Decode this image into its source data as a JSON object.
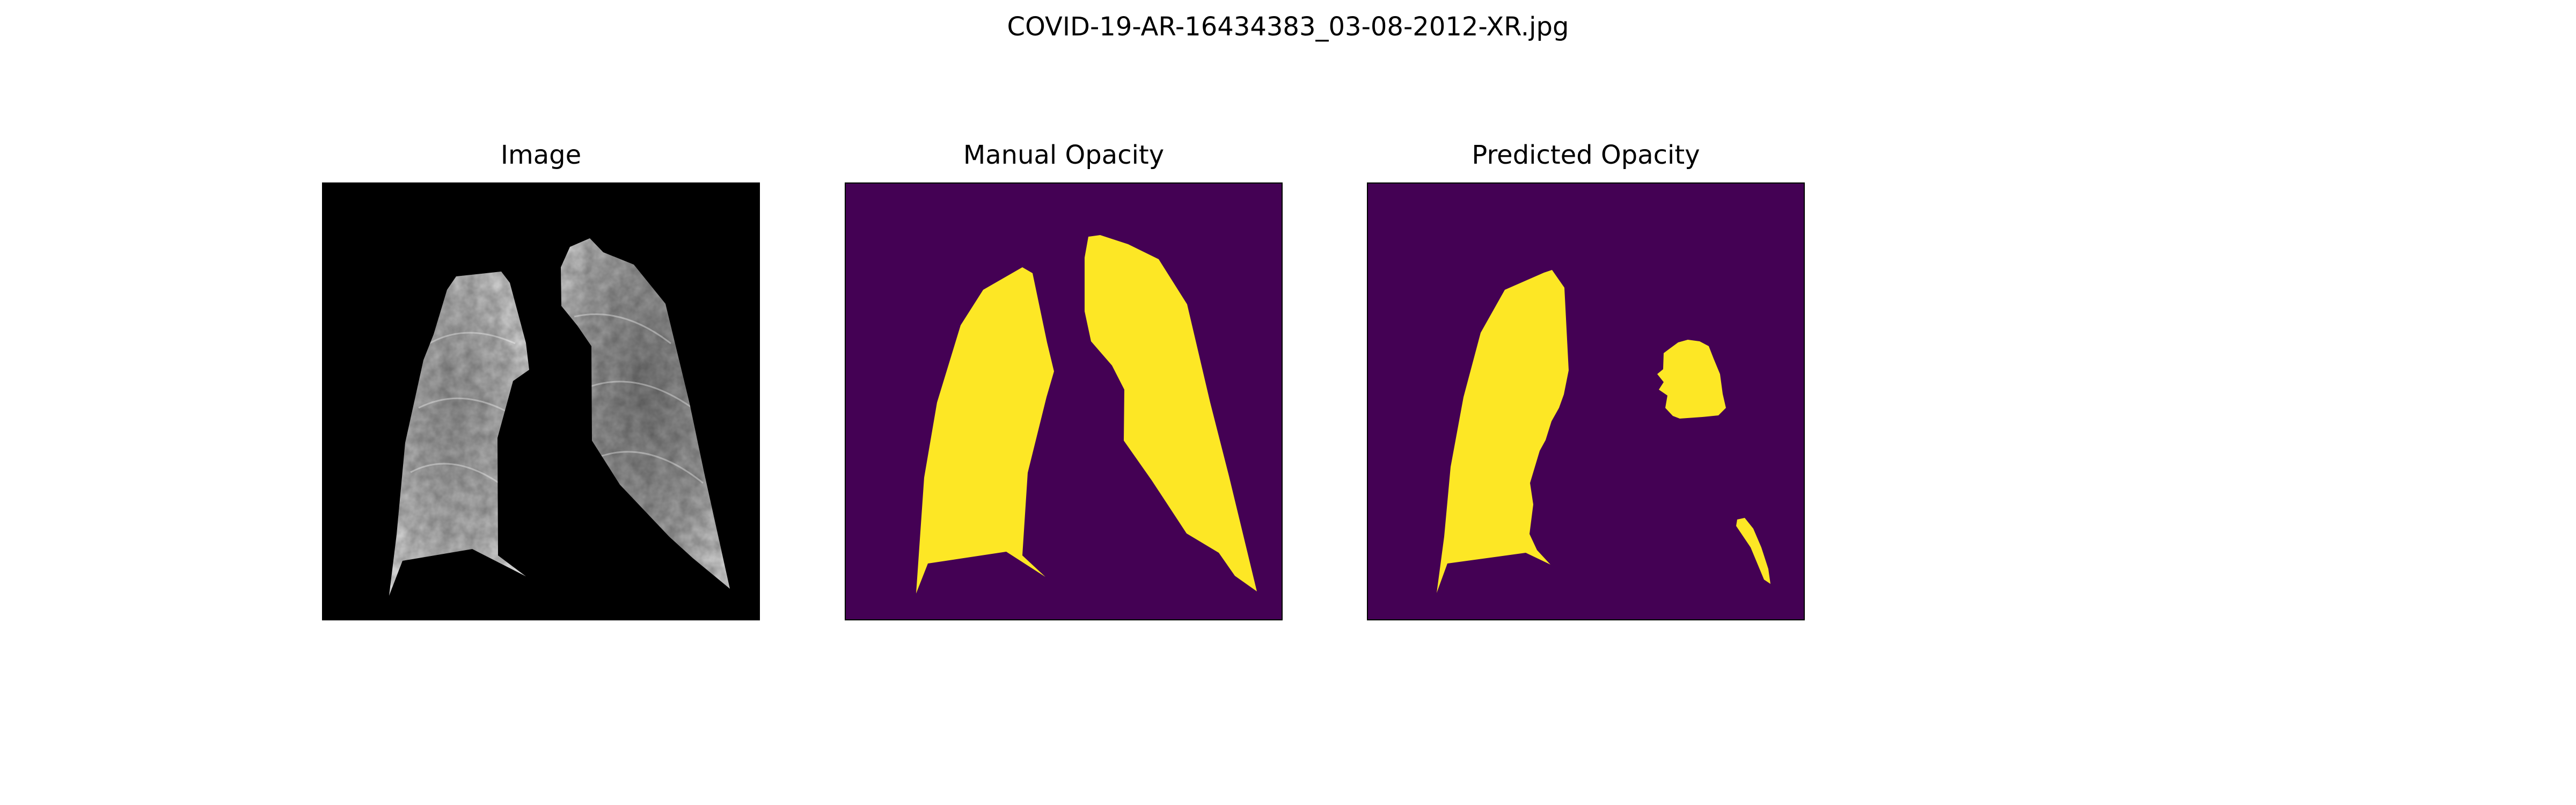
{
  "figure": {
    "title": "COVID-19-AR-16434383_03-08-2012-XR.jpg"
  },
  "panels": [
    {
      "title": "Image",
      "content": "chest x-ray with lungs segmented"
    },
    {
      "title": "Manual Opacity",
      "content": "manual lung opacity mask"
    },
    {
      "title": "Predicted Opacity",
      "content": "predicted lung opacity mask"
    }
  ],
  "colors": {
    "mask_background": "#440154",
    "mask_foreground": "#fde725",
    "xray_background": "#000000"
  }
}
